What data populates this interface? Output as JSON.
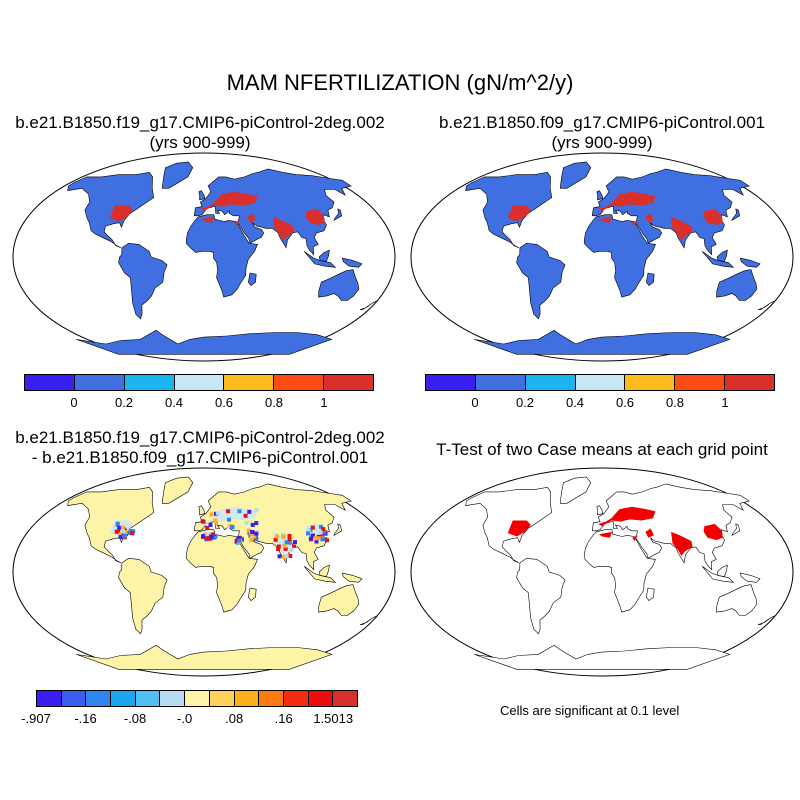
{
  "main_title": "MAM NFERTILIZATION (gN/m^2/y)",
  "panel1": {
    "title_line1": "b.e21.B1850.f19_g17.CMIP6-piControl-2deg.002",
    "title_line2": "(yrs 900-999)"
  },
  "panel2": {
    "title_line1": "b.e21.B1850.f09_g17.CMIP6-piControl.001",
    "title_line2": "(yrs 900-999)"
  },
  "panel3": {
    "title_line1": "b.e21.B1850.f19_g17.CMIP6-piControl-2deg.002",
    "title_line2": "- b.e21.B1850.f09_g17.CMIP6-piControl.001"
  },
  "panel4": {
    "title_line1": "T-Test of two Case means at each grid point",
    "note": "Cells are significant at 0.1 level"
  },
  "colorbar_top": {
    "colors": [
      "#3b1ff2",
      "#3f6fe0",
      "#1cb4f0",
      "#c8e6f6",
      "#fcbc1c",
      "#fc4c12",
      "#d9302c"
    ],
    "labels": [
      "0",
      "0.2",
      "0.4",
      "0.6",
      "0.8",
      "1"
    ]
  },
  "colorbar_diff": {
    "colors": [
      "#3b1ff2",
      "#3a5ef0",
      "#2f86ee",
      "#1aa6f0",
      "#4fc0f2",
      "#b5dcf2",
      "#fdf4a8",
      "#fcd25a",
      "#fcb01e",
      "#fc7a14",
      "#f42c10",
      "#ec0e0e",
      "#d9302c"
    ],
    "labels": [
      "-.907",
      "-.16",
      "-.08",
      "-.0",
      ".08",
      ".16",
      "1.5013"
    ]
  },
  "map_colors": {
    "ocean": "#ffffff",
    "land_base_top": "#3f6fe0",
    "high_fert": "#d9302c",
    "land_diff": "#fdf4a8",
    "signif": "#f00000"
  }
}
